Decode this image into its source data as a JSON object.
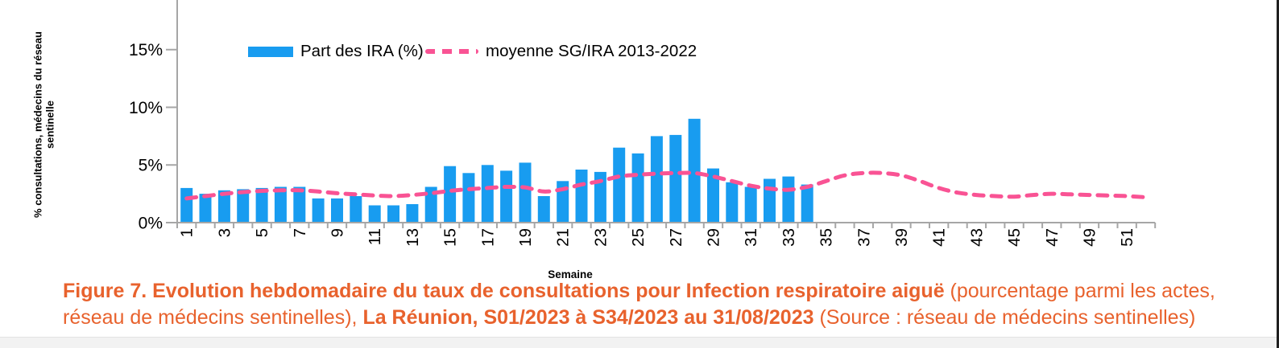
{
  "colors": {
    "bar": "#189CF0",
    "line": "#F95394",
    "caption": "#E8622D",
    "axis": "#A6A6A6",
    "text": "#000000"
  },
  "y_axis": {
    "title_line1": "% consultations, médecins du réseau",
    "title_line2": "sentinelle",
    "tick_labels": [
      "0%",
      "5%",
      "10%",
      "15%"
    ]
  },
  "x_axis": {
    "title": "Semaine",
    "tick_labels": [
      "1",
      "3",
      "5",
      "7",
      "9",
      "11",
      "13",
      "15",
      "17",
      "19",
      "21",
      "23",
      "25",
      "27",
      "29",
      "31",
      "33",
      "35",
      "37",
      "39",
      "41",
      "43",
      "45",
      "47",
      "49",
      "51"
    ]
  },
  "legend": [
    {
      "label": "Part des IRA (%)",
      "type": "bar"
    },
    {
      "label": "moyenne SG/IRA 2013-2022",
      "type": "dashed-line"
    }
  ],
  "caption": {
    "lines": [
      [
        {
          "t": "Figure 7. Evolution hebdomadaire du taux de consultations pour Infection respiratoire aiguë",
          "b": true
        },
        {
          "t": " (pourcentage parmi les actes,",
          "b": false
        }
      ],
      [
        {
          "t": "réseau de médecins sentinelles), ",
          "b": false
        },
        {
          "t": "La Réunion, S01/2023 à S34/2023 au 31/08/2023",
          "b": true
        },
        {
          "t": " (Source : réseau de médecins sentinelles)",
          "b": false
        }
      ]
    ]
  },
  "chart_data": {
    "type": "bar",
    "title": "",
    "xlabel": "Semaine",
    "ylabel": "% consultations, médecins du réseau sentinelle",
    "ylim": [
      0,
      19.4
    ],
    "yticks": [
      0,
      5,
      10,
      15
    ],
    "ytick_format": "percent",
    "xticks": [
      1,
      3,
      5,
      7,
      9,
      11,
      13,
      15,
      17,
      19,
      21,
      23,
      25,
      27,
      29,
      31,
      33,
      35,
      37,
      39,
      41,
      43,
      45,
      47,
      49,
      51
    ],
    "weeks_total": 52,
    "grid": false,
    "legend_position": "top-inside",
    "series": [
      {
        "name": "Part des IRA (%)",
        "type": "bar",
        "color": "#189CF0",
        "weeks": [
          1,
          2,
          3,
          4,
          5,
          6,
          7,
          8,
          9,
          10,
          11,
          12,
          13,
          14,
          15,
          16,
          17,
          18,
          19,
          20,
          21,
          22,
          23,
          24,
          25,
          26,
          27,
          28,
          29,
          30,
          31,
          32,
          33,
          34
        ],
        "values": [
          3.0,
          2.5,
          2.8,
          2.9,
          3.0,
          3.1,
          3.1,
          2.1,
          2.1,
          2.3,
          1.5,
          1.5,
          1.6,
          3.1,
          4.9,
          4.3,
          5.0,
          4.5,
          5.2,
          2.3,
          3.6,
          4.6,
          4.4,
          6.5,
          6.0,
          7.5,
          7.6,
          9.0,
          4.7,
          3.5,
          3.1,
          3.8,
          4.0,
          3.3
        ]
      },
      {
        "name": "moyenne SG/IRA 2013-2022",
        "type": "dashed-line",
        "color": "#F95394",
        "weeks": [
          1,
          2,
          3,
          4,
          5,
          6,
          7,
          8,
          9,
          10,
          11,
          12,
          13,
          14,
          15,
          16,
          17,
          18,
          19,
          20,
          21,
          22,
          23,
          24,
          25,
          26,
          27,
          28,
          29,
          30,
          31,
          32,
          33,
          34,
          35,
          36,
          37,
          38,
          39,
          40,
          41,
          42,
          43,
          44,
          45,
          46,
          47,
          48,
          49,
          50,
          51,
          52
        ],
        "values": [
          2.1,
          2.3,
          2.5,
          2.65,
          2.75,
          2.8,
          2.8,
          2.7,
          2.55,
          2.45,
          2.35,
          2.3,
          2.4,
          2.55,
          2.75,
          2.9,
          3.0,
          3.1,
          3.05,
          2.7,
          2.9,
          3.3,
          3.6,
          4.0,
          4.15,
          4.25,
          4.3,
          4.3,
          4.0,
          3.6,
          3.2,
          2.95,
          2.85,
          3.1,
          3.6,
          4.1,
          4.3,
          4.3,
          4.1,
          3.6,
          3.0,
          2.6,
          2.4,
          2.3,
          2.25,
          2.4,
          2.5,
          2.45,
          2.4,
          2.35,
          2.3,
          2.2
        ]
      }
    ]
  }
}
